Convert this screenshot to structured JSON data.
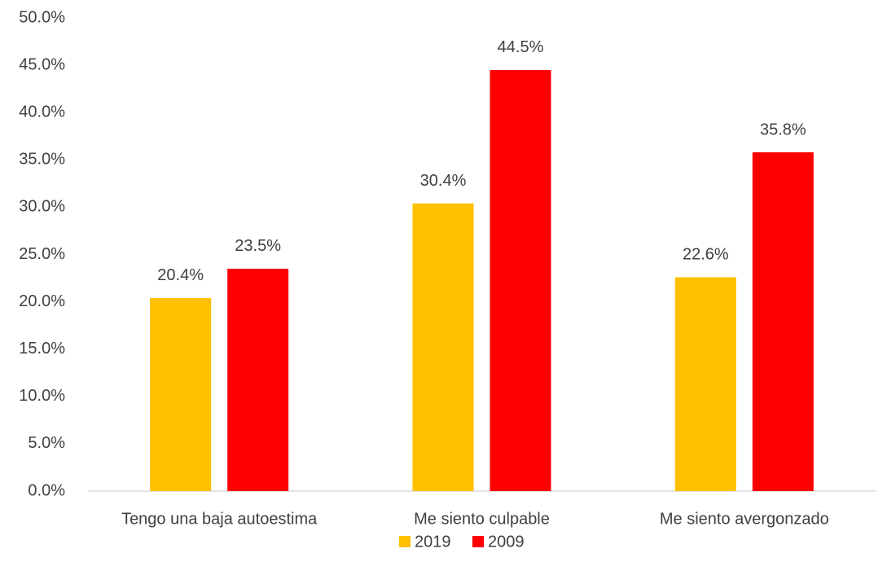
{
  "chart_data": {
    "type": "bar",
    "categories": [
      "Tengo una baja autoestima",
      "Me siento culpable",
      "Me siento avergonzado"
    ],
    "series": [
      {
        "name": "2019",
        "color": "#FFC000",
        "values": [
          20.4,
          30.4,
          22.6
        ],
        "value_labels": [
          "20.4%",
          "30.4%",
          "22.6%"
        ]
      },
      {
        "name": "2009",
        "color": "#FF0000",
        "values": [
          23.5,
          44.5,
          35.8
        ],
        "value_labels": [
          "23.5%",
          "44.5%",
          "35.8%"
        ]
      }
    ],
    "ylim": [
      0,
      50
    ],
    "yticks": [
      {
        "value": 0,
        "label": "0.0%"
      },
      {
        "value": 5,
        "label": "5.0%"
      },
      {
        "value": 10,
        "label": "10.0%"
      },
      {
        "value": 15,
        "label": "15.0%"
      },
      {
        "value": 20,
        "label": "20.0%"
      },
      {
        "value": 25,
        "label": "25.0%"
      },
      {
        "value": 30,
        "label": "30.0%"
      },
      {
        "value": 35,
        "label": "35.0%"
      },
      {
        "value": 40,
        "label": "40.0%"
      },
      {
        "value": 45,
        "label": "45.0%"
      },
      {
        "value": 50,
        "label": "50.0%"
      }
    ],
    "grid": false,
    "legend": "bottom"
  }
}
